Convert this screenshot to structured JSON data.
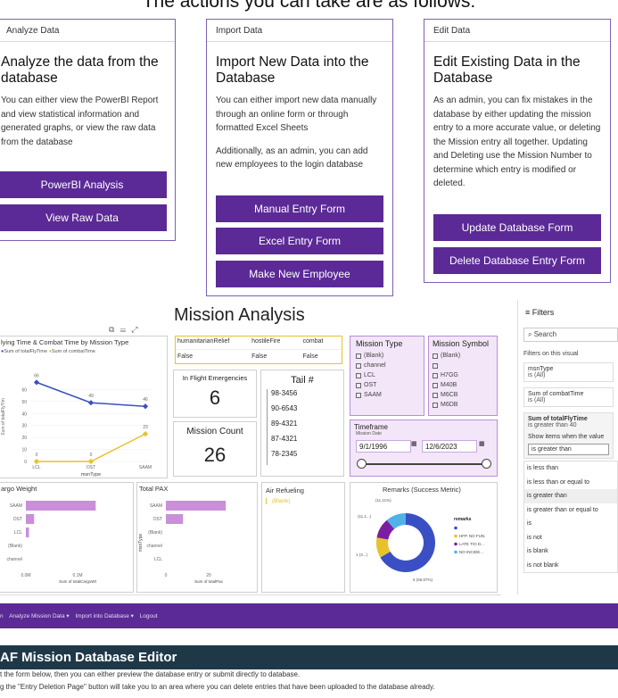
{
  "heading": "The actions you can take are as follows:",
  "cards": {
    "analyze": {
      "tab": "Analyze Data",
      "title": "Analyze the data from the database",
      "body": "You can either view the PowerBI Report and view statistical information and generated graphs, or view the raw data from the database",
      "buttons": [
        "PowerBI Analysis",
        "View Raw Data"
      ]
    },
    "import": {
      "tab": "Import Data",
      "title": "Import New Data into the Database",
      "body": "You can either import new data manually through an online form or through formatted Excel Sheets",
      "body2": "Additionally, as an admin, you can add new employees to the login database",
      "buttons": [
        "Manual Entry Form",
        "Excel Entry Form",
        "Make New Employee"
      ]
    },
    "edit": {
      "tab": "Edit Data",
      "title": "Edit Existing Data in the Database",
      "body": "As an admin, you can fix mistakes in the database by either updating the mission entry to a more accurate value, or deleting the Mission entry all together. Updating and Deleting use the Mission Number to determine which entry is modified or deleted.",
      "buttons": [
        "Update Database Form",
        "Delete Database Entry Form"
      ]
    }
  },
  "report": {
    "title": "Mission Analysis",
    "flying_chart": {
      "title": "lying Time & Combat Time by Mission Type",
      "legend": [
        "Sum of totalFlyTime",
        "Sum of combatTime"
      ],
      "xlabel": "msnType",
      "ylabel": "Sum of totalFlyTim",
      "colors": [
        "#3b4fc4",
        "#e8c22a"
      ]
    },
    "flags_header": [
      "humanitarianRelief",
      "hostileFire",
      "combat"
    ],
    "flags_values": [
      "False",
      "False",
      "False"
    ],
    "emergencies_label": "In Flight Emergencies",
    "emergencies_value": "6",
    "mission_count_label": "Mission Count",
    "mission_count_value": "26",
    "tail_label": "Tail #",
    "tails": [
      "98-3456",
      "90-6543",
      "89-4321",
      "87-4321",
      "78-2345"
    ],
    "mission_type": {
      "title": "Mission Type",
      "items": [
        "(Blank)",
        "channel",
        "LCL",
        "OST",
        "SAAM"
      ]
    },
    "mission_symbol": {
      "title": "Mission Symbol",
      "items": [
        "(Blank)",
        "",
        "H7GG",
        "M40B",
        "M6CB",
        "M6DB"
      ]
    },
    "timeframe": {
      "title": "Timeframe",
      "sub": "Mission Date",
      "start": "9/1/1996",
      "end": "12/6/2023"
    },
    "cargo": {
      "title": "argo Weight",
      "categories": [
        "SAAM",
        "OST",
        "LCL",
        "(Blank)",
        "channel"
      ],
      "ticks": [
        "0.0M",
        "0.1M"
      ],
      "xlabel": "Sum of totalCargoWt"
    },
    "pax": {
      "title": "Total PAX",
      "categories": [
        "SAAM",
        "OST",
        "(Blank)",
        "channel",
        "LCL"
      ],
      "ticks": [
        "0",
        "20"
      ],
      "xlabel": "Sum of totalPax",
      "ylabel": "msnType"
    },
    "air_refuel": {
      "title": "Air Refueling",
      "value": "(Blank)"
    },
    "remarks": {
      "title": "Remarks (Success Metric)",
      "legend_title": "remarks",
      "legend": [
        "",
        "HFP. NO FUN.",
        "LATE T/O D...",
        "NO INCIDE..."
      ],
      "colors": [
        "#3b4fc4",
        "#e8c22a",
        "#7b1fa2",
        "#4fb3e8"
      ],
      "labels": [
        "(11.11%)",
        "(11.1...)",
        "1 (3...)",
        "6 (66.67%)"
      ]
    }
  },
  "chart_data": [
    {
      "type": "line",
      "title": "lying Time & Combat Time by Mission Type",
      "categories": [
        "LCL",
        "OST",
        "SAAM"
      ],
      "series": [
        {
          "name": "Sum of totalFlyTime",
          "values": [
            66,
            49,
            46
          ]
        },
        {
          "name": "Sum of combatTime",
          "values": [
            0,
            0,
            23
          ]
        }
      ],
      "xlabel": "msnType",
      "ylabel": "Sum of totalFlyTim",
      "ylim": [
        0,
        70
      ],
      "yticks": [
        "0",
        "10",
        "20",
        "30",
        "40",
        "50",
        "60"
      ]
    },
    {
      "type": "bar",
      "title": "argo Weight",
      "categories": [
        "SAAM",
        "OST",
        "LCL",
        "(Blank)",
        "channel"
      ],
      "values": [
        0.135,
        0.016,
        0.006,
        0.0,
        0.0
      ],
      "xlabel": "Sum of totalCargoWt",
      "xlim": [
        0,
        0.2
      ]
    },
    {
      "type": "bar",
      "title": "Total PAX",
      "categories": [
        "SAAM",
        "OST",
        "(Blank)",
        "channel",
        "LCL"
      ],
      "values": [
        21,
        6,
        0,
        0,
        0
      ],
      "xlabel": "Sum of totalPax",
      "ylabel": "msnType",
      "xlim": [
        0,
        30
      ]
    },
    {
      "type": "pie",
      "title": "Remarks (Success Metric)",
      "categories": [
        "",
        "HFP. NO FUN.",
        "LATE T/O D...",
        "NO INCIDE..."
      ],
      "values": [
        66.67,
        11.11,
        11.11,
        11.11
      ]
    }
  ],
  "filters": {
    "title": "Filters",
    "search": "Search",
    "section": "Filters on this visual",
    "cards": [
      {
        "name": "msnType",
        "value": "is (All)"
      },
      {
        "name": "Sum of combatTime",
        "value": "is (All)"
      },
      {
        "name": "Sum of totalFlyTime",
        "value": "is greater than 40"
      }
    ],
    "show_label": "Show items when the value",
    "selected": "is greater than",
    "options": [
      "is less than",
      "is less than or equal to",
      "is greater than",
      "is greater than or equal to",
      "is",
      "is not",
      "is blank",
      "is not blank"
    ]
  },
  "nav": [
    "n",
    "Analyze Mission Data ▾",
    "Import into Database ▾",
    "Logout"
  ],
  "banner": "AF Mission Database Editor",
  "footer": [
    "t the form below, then you can either preview the database entry or submit directly to database.",
    "g the \"Entry Deletion Page\" button will take you to an area where you can delete entries that have been uploaded to the database already."
  ]
}
